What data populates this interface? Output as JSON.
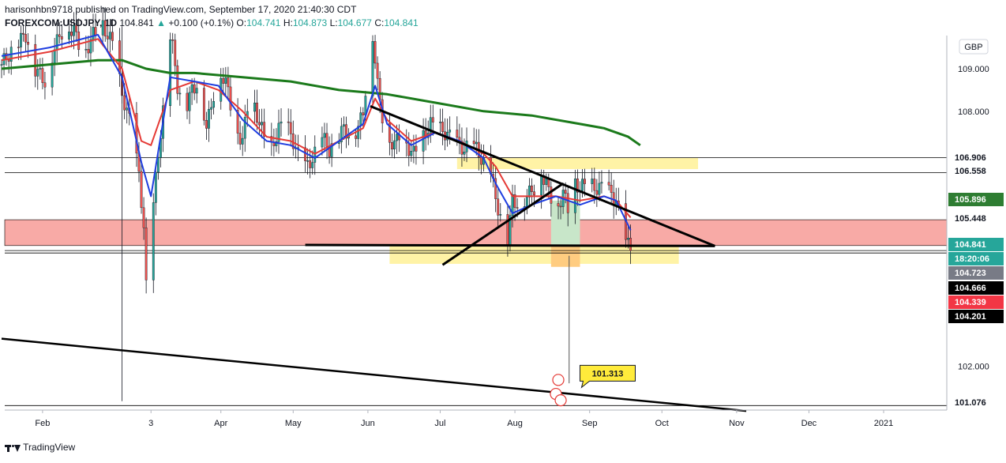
{
  "header": {
    "line1": "harisonhbn9718 published on TradingView.com, September 17, 2020 21:40:30 CDT",
    "symbol": "FOREXCOM:USDJPY, 1D",
    "last": "104.841",
    "change": "+0.100 (+0.1%)",
    "o_label": "O:",
    "o_val": "104.741",
    "h_label": "H:",
    "h_val": "104.873",
    "l_label": "L:",
    "l_val": "104.677",
    "c_label": "C:",
    "c_val": "104.841"
  },
  "currency_badge": "GBP",
  "footer": {
    "brand": "TradingView"
  },
  "chart_data": {
    "type": "candlestick",
    "title": "",
    "ylim": [
      100.95,
      110.0
    ],
    "y_ticks": [
      "109.000",
      "108.000",
      "102.000"
    ],
    "x_ticks": [
      {
        "label": "Feb",
        "day": 17
      },
      {
        "label": "3",
        "day": 62
      },
      {
        "label": "Apr",
        "day": 91
      },
      {
        "label": "May",
        "day": 121
      },
      {
        "label": "Jun",
        "day": 152
      },
      {
        "label": "Jul",
        "day": 182
      },
      {
        "label": "Aug",
        "day": 213
      },
      {
        "label": "Sep",
        "day": 244
      },
      {
        "label": "Oct",
        "day": 274
      },
      {
        "label": "Nov",
        "day": 305
      },
      {
        "label": "Dec",
        "day": 335
      },
      {
        "label": "2021",
        "day": 366
      }
    ],
    "close_series": [
      [
        0,
        109.1
      ],
      [
        5,
        109.5
      ],
      [
        10,
        109.8
      ],
      [
        14,
        109.0
      ],
      [
        18,
        108.7
      ],
      [
        22,
        109.5
      ],
      [
        26,
        110.0
      ],
      [
        30,
        109.9
      ],
      [
        34,
        109.3
      ],
      [
        38,
        109.8
      ],
      [
        42,
        110.0
      ],
      [
        46,
        109.6
      ],
      [
        50,
        108.4
      ],
      [
        54,
        107.6
      ],
      [
        57,
        106.5
      ],
      [
        59,
        105.3
      ],
      [
        61,
        102.4
      ],
      [
        63,
        105.8
      ],
      [
        65,
        107.0
      ],
      [
        67,
        108.0
      ],
      [
        69,
        110.0
      ],
      [
        71,
        109.5
      ],
      [
        73,
        108.6
      ],
      [
        76,
        108.0
      ],
      [
        79,
        108.5
      ],
      [
        82,
        108.7
      ],
      [
        85,
        107.6
      ],
      [
        88,
        108.4
      ],
      [
        91,
        108.9
      ],
      [
        94,
        108.5
      ],
      [
        97,
        107.6
      ],
      [
        100,
        107.3
      ],
      [
        103,
        108.5
      ],
      [
        106,
        107.9
      ],
      [
        109,
        107.4
      ],
      [
        112,
        107.1
      ],
      [
        115,
        107.6
      ],
      [
        118,
        107.7
      ],
      [
        121,
        107.3
      ],
      [
        124,
        106.8
      ],
      [
        127,
        106.7
      ],
      [
        130,
        107.0
      ],
      [
        133,
        107.4
      ],
      [
        136,
        107.1
      ],
      [
        139,
        107.3
      ],
      [
        142,
        107.6
      ],
      [
        145,
        107.4
      ],
      [
        148,
        107.6
      ],
      [
        150,
        108.0
      ],
      [
        152,
        109.0
      ],
      [
        154,
        109.8
      ],
      [
        156,
        108.6
      ],
      [
        158,
        107.9
      ],
      [
        160,
        107.4
      ],
      [
        163,
        107.2
      ],
      [
        166,
        107.6
      ],
      [
        168,
        107.2
      ],
      [
        171,
        107.0
      ],
      [
        175,
        107.4
      ],
      [
        178,
        107.7
      ],
      [
        181,
        107.6
      ],
      [
        184,
        107.5
      ],
      [
        188,
        107.3
      ],
      [
        192,
        107.1
      ],
      [
        196,
        107.2
      ],
      [
        200,
        106.8
      ],
      [
        203,
        106.6
      ],
      [
        205,
        105.9
      ],
      [
        208,
        105.4
      ],
      [
        210,
        105.0
      ],
      [
        212,
        105.9
      ],
      [
        215,
        105.8
      ],
      [
        218,
        106.0
      ],
      [
        221,
        106.2
      ],
      [
        223,
        106.8
      ],
      [
        225,
        106.4
      ],
      [
        228,
        106.0
      ],
      [
        230,
        105.6
      ],
      [
        233,
        106.1
      ],
      [
        236,
        105.5
      ],
      [
        238,
        106.3
      ],
      [
        240,
        106.2
      ],
      [
        243,
        106.3
      ],
      [
        246,
        106.2
      ],
      [
        249,
        106.2
      ],
      [
        252,
        106.1
      ],
      [
        255,
        105.9
      ],
      [
        257,
        105.4
      ],
      [
        259,
        104.9
      ],
      [
        261,
        104.84
      ]
    ],
    "ema_short_red": [
      [
        0,
        109.2
      ],
      [
        20,
        109.4
      ],
      [
        40,
        109.7
      ],
      [
        50,
        109.0
      ],
      [
        58,
        107.3
      ],
      [
        62,
        107.2
      ],
      [
        70,
        108.5
      ],
      [
        80,
        108.7
      ],
      [
        90,
        108.5
      ],
      [
        100,
        108.0
      ],
      [
        110,
        107.4
      ],
      [
        120,
        107.3
      ],
      [
        130,
        107.0
      ],
      [
        140,
        107.3
      ],
      [
        150,
        107.6
      ],
      [
        155,
        108.3
      ],
      [
        160,
        107.8
      ],
      [
        170,
        107.3
      ],
      [
        180,
        107.5
      ],
      [
        190,
        107.3
      ],
      [
        200,
        107.0
      ],
      [
        205,
        106.7
      ],
      [
        212,
        106.0
      ],
      [
        220,
        106.0
      ],
      [
        230,
        106.0
      ],
      [
        240,
        105.9
      ],
      [
        250,
        106.0
      ],
      [
        255,
        105.9
      ],
      [
        261,
        105.5
      ]
    ],
    "ema_short_blue": [
      [
        0,
        109.3
      ],
      [
        20,
        109.5
      ],
      [
        40,
        109.8
      ],
      [
        50,
        108.8
      ],
      [
        58,
        106.8
      ],
      [
        62,
        106.0
      ],
      [
        70,
        108.8
      ],
      [
        80,
        108.7
      ],
      [
        90,
        108.6
      ],
      [
        100,
        107.8
      ],
      [
        110,
        107.3
      ],
      [
        120,
        107.2
      ],
      [
        130,
        106.9
      ],
      [
        140,
        107.3
      ],
      [
        150,
        107.7
      ],
      [
        155,
        108.6
      ],
      [
        160,
        107.7
      ],
      [
        170,
        107.2
      ],
      [
        180,
        107.5
      ],
      [
        190,
        107.3
      ],
      [
        200,
        106.9
      ],
      [
        205,
        106.3
      ],
      [
        212,
        105.6
      ],
      [
        220,
        105.8
      ],
      [
        230,
        106.0
      ],
      [
        240,
        105.8
      ],
      [
        250,
        106.0
      ],
      [
        255,
        105.9
      ],
      [
        261,
        105.2
      ]
    ],
    "ma_long_green": [
      [
        0,
        109.0
      ],
      [
        20,
        109.1
      ],
      [
        40,
        109.2
      ],
      [
        50,
        109.2
      ],
      [
        60,
        109.0
      ],
      [
        70,
        108.9
      ],
      [
        80,
        108.9
      ],
      [
        100,
        108.8
      ],
      [
        120,
        108.7
      ],
      [
        140,
        108.5
      ],
      [
        160,
        108.4
      ],
      [
        180,
        108.2
      ],
      [
        200,
        108.0
      ],
      [
        220,
        107.9
      ],
      [
        240,
        107.7
      ],
      [
        250,
        107.6
      ],
      [
        260,
        107.4
      ],
      [
        265,
        107.2
      ]
    ],
    "horizontal_levels": [
      "106.906",
      "106.558",
      "104.723",
      "104.666",
      "101.076"
    ],
    "price_labels": [
      {
        "text": "106.906",
        "bg": "#ffffff",
        "fg": "#131722"
      },
      {
        "text": "106.558",
        "bg": "#ffffff",
        "fg": "#131722"
      },
      {
        "text": "105.896",
        "bg": "#2e7d32",
        "fg": "#ffffff"
      },
      {
        "text": "105.448",
        "bg": "#ffffff",
        "fg": "#131722"
      },
      {
        "text": "104.841",
        "bg": "#26a69a",
        "fg": "#ffffff"
      },
      {
        "text": "18:20:06",
        "bg": "#26a69a",
        "fg": "#ffffff"
      },
      {
        "text": "104.723",
        "bg": "#787b86",
        "fg": "#ffffff"
      },
      {
        "text": "104.666",
        "bg": "#000000",
        "fg": "#ffffff"
      },
      {
        "text": "104.339",
        "bg": "#f23645",
        "fg": "#ffffff"
      },
      {
        "text": "104.201",
        "bg": "#000000",
        "fg": "#ffffff"
      },
      {
        "text": "101.076",
        "bg": "#ffffff",
        "fg": "#131722"
      }
    ],
    "target_callout": "101.313",
    "colors": {
      "up": "#26a69a",
      "down": "#ef5350",
      "ema_red": "#e53935",
      "ema_blue": "#1e3de0",
      "ma_green": "#1b7a1b",
      "zone_red": "#f8aaa6",
      "zone_yellow": "#fff3a6",
      "trend": "#000000"
    }
  }
}
